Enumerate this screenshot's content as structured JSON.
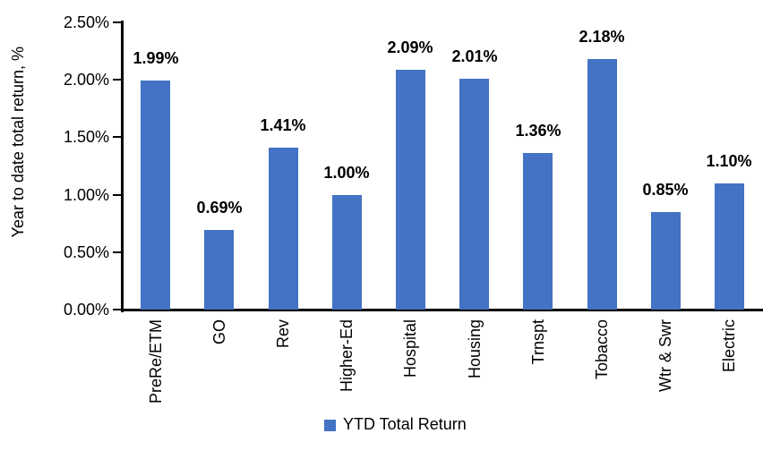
{
  "chart_data": {
    "type": "bar",
    "title": "",
    "categories": [
      "PreRe/ETM",
      "GO",
      "Rev",
      "Higher-Ed",
      "Hospital",
      "Housing",
      "Trnspt",
      "Tobacco",
      "Wtr & Swr",
      "Electric"
    ],
    "values": [
      1.99,
      0.69,
      1.41,
      1.0,
      2.09,
      2.01,
      1.36,
      2.18,
      0.85,
      1.1
    ],
    "value_labels": [
      "1.99%",
      "0.69%",
      "1.41%",
      "1.00%",
      "2.09%",
      "2.01%",
      "1.36%",
      "2.18%",
      "0.85%",
      "1.10%"
    ],
    "xlabel": "",
    "ylabel": "Year to date total return, %",
    "ylim": [
      0,
      2.5
    ],
    "y_tick_values": [
      0,
      0.5,
      1.0,
      1.5,
      2.0,
      2.5
    ],
    "y_tick_labels": [
      "0.00%",
      "0.50%",
      "1.00%",
      "1.50%",
      "2.00%",
      "2.50%"
    ],
    "grid": false,
    "legend_position": "bottom",
    "legend": {
      "label": "YTD Total Return"
    },
    "colors": {
      "bar": "#4472C4",
      "axis": "#000000",
      "text": "#000000",
      "background": "#FFFFFF"
    }
  }
}
